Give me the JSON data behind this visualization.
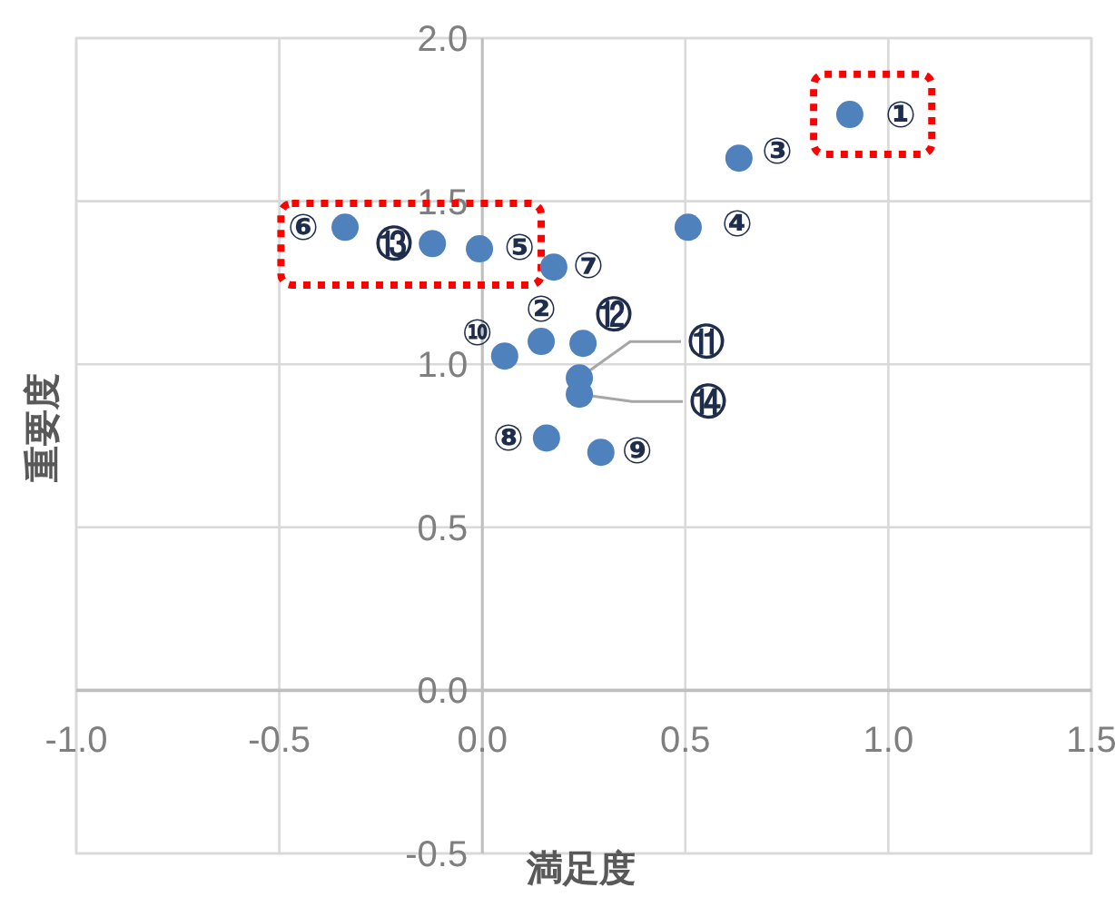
{
  "chart_data": {
    "type": "scatter",
    "xlabel": "満足度",
    "ylabel": "重要度",
    "x": [
      0.905,
      0.145,
      0.632,
      0.507,
      -0.007,
      -0.338,
      0.176,
      0.158,
      0.292,
      0.055,
      0.239,
      0.248,
      -0.123,
      0.239
    ],
    "series": [
      {
        "color": "#4f81bd",
        "values": [
          1.766,
          1.07,
          1.632,
          1.42,
          1.354,
          1.42,
          1.298,
          0.774,
          0.73,
          1.025,
          0.958,
          1.064,
          1.37,
          0.908
        ]
      }
    ],
    "annotations": [
      {
        "text": "①",
        "x": 0.905,
        "y": 1.766
      },
      {
        "text": "②",
        "x": 0.145,
        "y": 1.07
      },
      {
        "text": "③",
        "x": 0.632,
        "y": 1.632
      },
      {
        "text": "④",
        "x": 0.507,
        "y": 1.42
      },
      {
        "text": "⑤",
        "x": -0.007,
        "y": 1.354
      },
      {
        "text": "⑥",
        "x": -0.338,
        "y": 1.42
      },
      {
        "text": "⑦",
        "x": 0.176,
        "y": 1.298
      },
      {
        "text": "⑧",
        "x": 0.158,
        "y": 0.774
      },
      {
        "text": "⑨",
        "x": 0.292,
        "y": 0.73
      },
      {
        "text": "⑩",
        "x": 0.055,
        "y": 1.025
      },
      {
        "text": "⑪",
        "x": 0.239,
        "y": 0.958
      },
      {
        "text": "⑫",
        "x": 0.248,
        "y": 1.064
      },
      {
        "text": "⑬",
        "x": -0.123,
        "y": 1.37
      },
      {
        "text": "⑭",
        "x": 0.239,
        "y": 0.908
      }
    ],
    "xlim": [
      -1.0,
      1.5
    ],
    "xticks": [
      {
        "value": -1,
        "label": "-1.0"
      },
      {
        "value": -0.5,
        "label": "-0.5"
      },
      {
        "value": 0,
        "label": "0.0"
      },
      0.5,
      {
        "value": 1,
        "label": "1.0"
      },
      1.5
    ],
    "ylim": [
      -0.5,
      2.0
    ],
    "yticks": [
      {
        "value": -0.5,
        "label": "-0.5"
      },
      {
        "value": 0,
        "label": "0.0"
      },
      0.5,
      {
        "value": 1,
        "label": "1.0"
      },
      1.5,
      {
        "value": 2,
        "label": "2.0"
      }
    ],
    "grid": true,
    "marker": "circle"
  }
}
